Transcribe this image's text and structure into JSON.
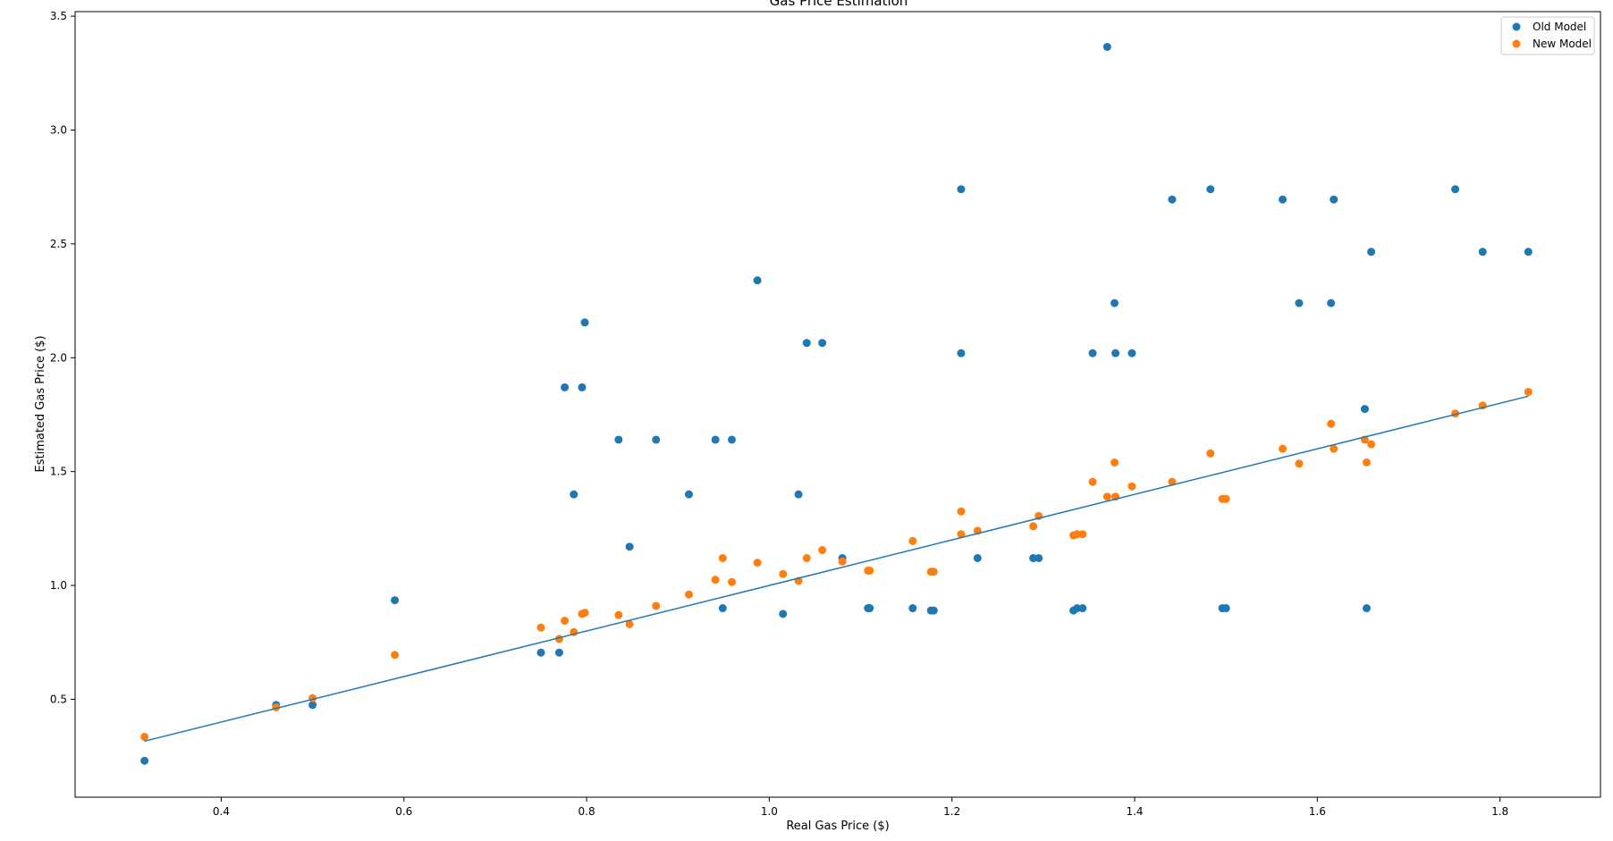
{
  "chart_data": {
    "type": "scatter",
    "title": "Gas Price Estimation",
    "xlabel": "Real Gas Price ($)",
    "ylabel": "Estimated Gas Price ($)",
    "xlim": [
      0.24,
      1.91
    ],
    "ylim": [
      0.07,
      3.52
    ],
    "xticks": [
      0.4,
      0.6,
      0.8,
      1.0,
      1.2,
      1.4,
      1.6,
      1.8
    ],
    "xtick_labels": [
      "0.4",
      "0.6",
      "0.8",
      "1.0",
      "1.2",
      "1.4",
      "1.6",
      "1.8"
    ],
    "yticks": [
      0.5,
      1.0,
      1.5,
      2.0,
      2.5,
      3.0,
      3.5
    ],
    "ytick_labels": [
      "0.5",
      "1.0",
      "1.5",
      "2.0",
      "2.5",
      "3.0",
      "3.5"
    ],
    "grid": false,
    "legend_position": "top-right",
    "colors": {
      "old": "#1f77b4",
      "new": "#ff7f0e",
      "line": "#1f77b4"
    },
    "series": [
      {
        "name": "Old Model",
        "x": [
          0.316,
          0.46,
          0.5,
          0.59,
          0.75,
          0.77,
          0.776,
          0.786,
          0.795,
          0.798,
          0.835,
          0.847,
          0.876,
          0.912,
          0.941,
          0.949,
          0.959,
          0.987,
          1.015,
          1.032,
          1.041,
          1.058,
          1.08,
          1.108,
          1.11,
          1.157,
          1.177,
          1.18,
          1.21,
          1.21,
          1.228,
          1.289,
          1.295,
          1.333,
          1.337,
          1.343,
          1.354,
          1.37,
          1.378,
          1.379,
          1.397,
          1.441,
          1.483,
          1.496,
          1.5,
          1.562,
          1.58,
          1.615,
          1.618,
          1.652,
          1.654,
          1.659,
          1.751,
          1.781,
          1.831
        ],
        "y": [
          0.23,
          0.475,
          0.475,
          0.935,
          0.705,
          0.705,
          1.87,
          1.4,
          1.87,
          2.155,
          1.64,
          1.17,
          1.64,
          1.4,
          1.64,
          0.9,
          1.64,
          2.34,
          0.875,
          1.4,
          2.065,
          2.065,
          1.12,
          0.9,
          0.9,
          0.9,
          0.89,
          0.89,
          2.74,
          2.02,
          1.12,
          1.12,
          1.12,
          0.89,
          0.9,
          0.9,
          2.02,
          3.365,
          2.24,
          2.02,
          2.02,
          2.695,
          2.74,
          0.9,
          0.9,
          2.695,
          2.24,
          2.24,
          2.695,
          1.775,
          0.9,
          2.465,
          2.74,
          2.465,
          2.465
        ]
      },
      {
        "name": "New Model",
        "x": [
          0.316,
          0.46,
          0.5,
          0.59,
          0.75,
          0.77,
          0.776,
          0.786,
          0.795,
          0.798,
          0.835,
          0.847,
          0.876,
          0.912,
          0.941,
          0.949,
          0.959,
          0.987,
          1.015,
          1.032,
          1.041,
          1.058,
          1.08,
          1.108,
          1.11,
          1.157,
          1.177,
          1.18,
          1.21,
          1.21,
          1.228,
          1.289,
          1.295,
          1.333,
          1.337,
          1.343,
          1.354,
          1.37,
          1.378,
          1.379,
          1.397,
          1.441,
          1.483,
          1.496,
          1.5,
          1.562,
          1.58,
          1.615,
          1.618,
          1.652,
          1.654,
          1.659,
          1.751,
          1.781,
          1.831
        ],
        "y": [
          0.335,
          0.465,
          0.505,
          0.695,
          0.815,
          0.765,
          0.845,
          0.795,
          0.875,
          0.88,
          0.87,
          0.83,
          0.91,
          0.96,
          1.025,
          1.12,
          1.015,
          1.1,
          1.05,
          1.02,
          1.12,
          1.155,
          1.105,
          1.065,
          1.065,
          1.195,
          1.06,
          1.06,
          1.325,
          1.225,
          1.24,
          1.26,
          1.305,
          1.22,
          1.225,
          1.225,
          1.455,
          1.39,
          1.54,
          1.39,
          1.435,
          1.455,
          1.58,
          1.38,
          1.38,
          1.6,
          1.535,
          1.71,
          1.6,
          1.64,
          1.54,
          1.62,
          1.755,
          1.79,
          1.85
        ]
      }
    ],
    "fit_line": {
      "slope": 1.0,
      "intercept": 0.0,
      "x_range": [
        0.316,
        1.831
      ]
    }
  }
}
